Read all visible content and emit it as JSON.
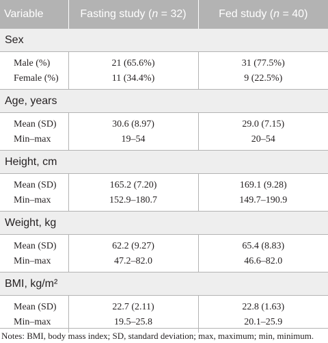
{
  "header": {
    "variable": "Variable",
    "fasting_prefix": "Fasting study (",
    "fasting_n": "n",
    "fasting_suffix": " = 32)",
    "fed_prefix": "Fed study (",
    "fed_n": "n",
    "fed_suffix": " = 40)"
  },
  "sections": [
    {
      "title": "Sex",
      "rows": [
        {
          "label": "Male (%)",
          "fasting": "21 (65.6%)",
          "fed": "31 (77.5%)"
        },
        {
          "label": "Female (%)",
          "fasting": "11 (34.4%)",
          "fed": "9 (22.5%)"
        }
      ]
    },
    {
      "title": "Age, years",
      "rows": [
        {
          "label": "Mean (SD)",
          "fasting": "30.6 (8.97)",
          "fed": "29.0 (7.15)"
        },
        {
          "label": "Min–max",
          "fasting": "19–54",
          "fed": "20–54"
        }
      ]
    },
    {
      "title": "Height, cm",
      "rows": [
        {
          "label": "Mean (SD)",
          "fasting": "165.2 (7.20)",
          "fed": "169.1 (9.28)"
        },
        {
          "label": "Min–max",
          "fasting": "152.9–180.7",
          "fed": "149.7–190.9"
        }
      ]
    },
    {
      "title": "Weight, kg",
      "rows": [
        {
          "label": "Mean (SD)",
          "fasting": "62.2 (9.27)",
          "fed": "65.4 (8.83)"
        },
        {
          "label": "Min–max",
          "fasting": "47.2–82.0",
          "fed": "46.6–82.0"
        }
      ]
    },
    {
      "title": "BMI, kg/m²",
      "rows": [
        {
          "label": "Mean (SD)",
          "fasting": "22.7 (2.11)",
          "fed": "22.8 (1.63)"
        },
        {
          "label": "Min–max",
          "fasting": "19.5–25.8",
          "fed": "20.1–25.9"
        }
      ]
    }
  ],
  "notes": "Notes: BMI, body mass index; SD, standard deviation; max, maximum; min, minimum."
}
